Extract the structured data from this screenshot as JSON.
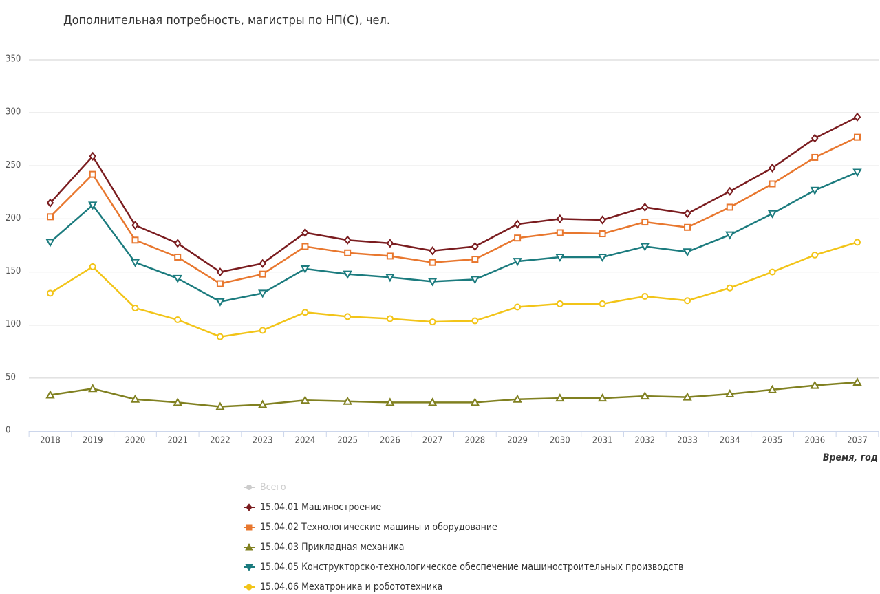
{
  "chart_data": {
    "type": "line",
    "title": "Дополнительная потребность, магистры по НП(С), чел.",
    "x_label": "Время, год",
    "categories": [
      "2018",
      "2019",
      "2020",
      "2021",
      "2022",
      "2023",
      "2024",
      "2025",
      "2026",
      "2027",
      "2028",
      "2029",
      "2030",
      "2031",
      "2032",
      "2033",
      "2034",
      "2035",
      "2036",
      "2037"
    ],
    "ylim": [
      0,
      350
    ],
    "yticks": [
      0,
      50,
      100,
      150,
      200,
      250,
      300,
      350
    ],
    "grid": true,
    "legend_hidden": [
      {
        "name": "Всего",
        "color": "#cccccc"
      }
    ],
    "series": [
      {
        "name": "15.04.01 Машиностроение",
        "color": "#7a1c1f",
        "marker": "diamond",
        "values": [
          215,
          259,
          194,
          177,
          150,
          158,
          187,
          180,
          177,
          170,
          174,
          195,
          200,
          199,
          211,
          205,
          226,
          248,
          276,
          296
        ]
      },
      {
        "name": "15.04.02 Технологические машины и оборудование",
        "color": "#e8772e",
        "marker": "square",
        "values": [
          202,
          242,
          180,
          164,
          139,
          148,
          174,
          168,
          165,
          159,
          162,
          182,
          187,
          186,
          197,
          192,
          211,
          233,
          258,
          277
        ]
      },
      {
        "name": "15.04.03 Прикладная механика",
        "color": "#808020",
        "marker": "triangle",
        "values": [
          34,
          40,
          30,
          27,
          23,
          25,
          29,
          28,
          27,
          27,
          27,
          30,
          31,
          31,
          33,
          32,
          35,
          39,
          43,
          46
        ]
      },
      {
        "name": "15.04.05 Конструкторско-технологическое обеспечение машиностроительных производств",
        "color": "#1b7b7e",
        "marker": "triangle-down",
        "values": [
          178,
          213,
          159,
          144,
          122,
          130,
          153,
          148,
          145,
          141,
          143,
          160,
          164,
          164,
          174,
          169,
          185,
          205,
          227,
          244
        ]
      },
      {
        "name": "15.04.06 Мехатроника и робототехника",
        "color": "#f2c418",
        "marker": "circle",
        "values": [
          130,
          155,
          116,
          105,
          89,
          95,
          112,
          108,
          106,
          103,
          104,
          117,
          120,
          120,
          127,
          123,
          135,
          150,
          166,
          178
        ]
      }
    ]
  }
}
